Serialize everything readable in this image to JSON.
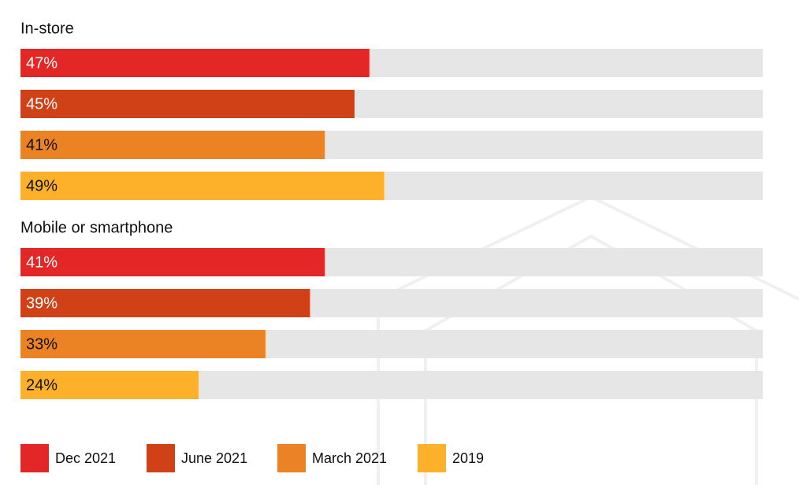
{
  "chart_data": {
    "type": "bar",
    "orientation": "horizontal",
    "categories": [
      "In-store",
      "Mobile or smartphone"
    ],
    "xlim": [
      0,
      100
    ],
    "series": [
      {
        "name": "Dec 2021",
        "color": "#e32726",
        "values": [
          47,
          41
        ],
        "value_labels": [
          "47%",
          "41%"
        ]
      },
      {
        "name": "June 2021",
        "color": "#d04118",
        "values": [
          45,
          39
        ],
        "value_labels": [
          "45%",
          "39%"
        ]
      },
      {
        "name": "March 2021",
        "color": "#eb8223",
        "values": [
          41,
          33
        ],
        "value_labels": [
          "41%",
          "33%"
        ]
      },
      {
        "name": "2019",
        "color": "#fdb12a",
        "values": [
          49,
          24
        ],
        "value_labels": [
          "49%",
          "24%"
        ]
      }
    ]
  }
}
